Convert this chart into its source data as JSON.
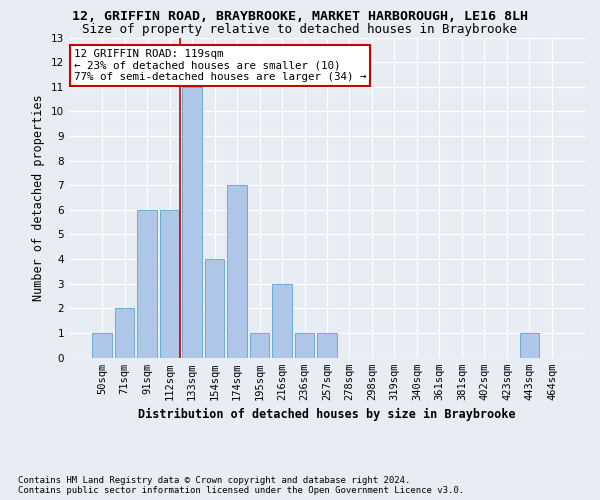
{
  "title1": "12, GRIFFIN ROAD, BRAYBROOKE, MARKET HARBOROUGH, LE16 8LH",
  "title2": "Size of property relative to detached houses in Braybrooke",
  "xlabel": "Distribution of detached houses by size in Braybrooke",
  "ylabel": "Number of detached properties",
  "bar_color": "#aec6e8",
  "bar_edge_color": "#6aacd4",
  "categories": [
    "50sqm",
    "71sqm",
    "91sqm",
    "112sqm",
    "133sqm",
    "154sqm",
    "174sqm",
    "195sqm",
    "216sqm",
    "236sqm",
    "257sqm",
    "278sqm",
    "298sqm",
    "319sqm",
    "340sqm",
    "361sqm",
    "381sqm",
    "402sqm",
    "423sqm",
    "443sqm",
    "464sqm"
  ],
  "values": [
    1,
    2,
    6,
    6,
    11,
    4,
    7,
    1,
    3,
    1,
    1,
    0,
    0,
    0,
    0,
    0,
    0,
    0,
    0,
    1,
    0
  ],
  "ylim": [
    0,
    13
  ],
  "yticks": [
    0,
    1,
    2,
    3,
    4,
    5,
    6,
    7,
    8,
    9,
    10,
    11,
    12,
    13
  ],
  "annotation_text": "12 GRIFFIN ROAD: 119sqm\n← 23% of detached houses are smaller (10)\n77% of semi-detached houses are larger (34) →",
  "vline_x": 3.45,
  "vline_color": "#cc0000",
  "annotation_box_color": "#ffffff",
  "annotation_box_edge_color": "#cc0000",
  "footer1": "Contains HM Land Registry data © Crown copyright and database right 2024.",
  "footer2": "Contains public sector information licensed under the Open Government Licence v3.0.",
  "background_color": "#e8edf4",
  "plot_bg_color": "#e8edf4",
  "grid_color": "#ffffff",
  "title1_fontsize": 9.5,
  "title2_fontsize": 9.0,
  "ylabel_fontsize": 8.5,
  "xlabel_fontsize": 8.5,
  "tick_fontsize": 7.5,
  "annotation_fontsize": 7.8,
  "footer_fontsize": 6.5
}
